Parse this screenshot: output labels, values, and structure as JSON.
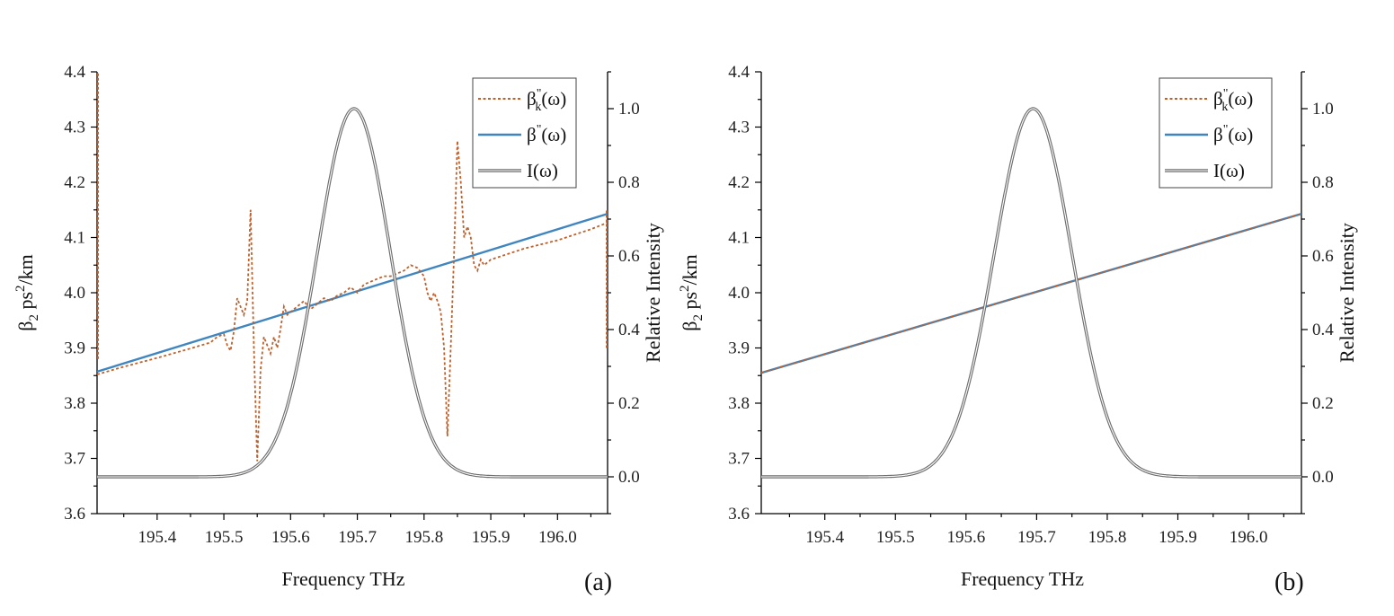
{
  "chart_data": [
    {
      "type": "line",
      "panel_label": "(a)",
      "xlabel": "Frequency THz",
      "ylabel": "β2 ps2/km",
      "ylabel_parts": {
        "base": "β",
        "sub": "2",
        "unit": " ps",
        "sup": "2",
        "unit2": "/km"
      },
      "y2label": "Relative Intensity",
      "xlim": [
        195.31,
        196.075
      ],
      "ylim": [
        3.6,
        4.4
      ],
      "y2lim": [
        -0.1,
        1.1
      ],
      "x_ticks": [
        "195.4",
        "195.5",
        "195.6",
        "195.7",
        "195.8",
        "195.9",
        "196.0"
      ],
      "y_ticks": [
        "3.6",
        "3.7",
        "3.8",
        "3.9",
        "4.0",
        "4.1",
        "4.2",
        "4.3",
        "4.4"
      ],
      "y2_ticks": [
        "0.0",
        "0.2",
        "0.4",
        "0.6",
        "0.8",
        "1.0"
      ],
      "legend": [
        {
          "label": "βk''(ω)",
          "base": "β",
          "sub": "k",
          "sup": "\"",
          "arg": "(ω)",
          "style": "dotted",
          "color": "#c0602a"
        },
        {
          "label": "β''(ω)",
          "base": "β",
          "sub": "",
          "sup": "\"",
          "arg": "(ω)",
          "style": "solid",
          "color": "#3f86c0"
        },
        {
          "label": "I(ω)",
          "base": "I",
          "sub": "",
          "sup": "",
          "arg": "(ω)",
          "style": "double",
          "color": "#555555"
        }
      ],
      "series": [
        {
          "name": "β''(ω)",
          "axis": "left",
          "x": [
            195.31,
            196.075
          ],
          "y": [
            3.857,
            4.143
          ]
        },
        {
          "name": "βk''(ω)",
          "axis": "left",
          "x": [
            195.31,
            195.35,
            195.4,
            195.45,
            195.48,
            195.49,
            195.5,
            195.505,
            195.51,
            195.515,
            195.52,
            195.525,
            195.53,
            195.535,
            195.54,
            195.545,
            195.55,
            195.555,
            195.56,
            195.565,
            195.57,
            195.575,
            195.58,
            195.585,
            195.59,
            195.595,
            195.6,
            195.61,
            195.62,
            195.63,
            195.64,
            195.65,
            195.66,
            195.67,
            195.68,
            195.69,
            195.7,
            195.71,
            195.72,
            195.73,
            195.74,
            195.75,
            195.76,
            195.77,
            195.78,
            195.79,
            195.8,
            195.805,
            195.81,
            195.815,
            195.82,
            195.825,
            195.83,
            195.835,
            195.84,
            195.845,
            195.85,
            195.855,
            195.86,
            195.865,
            195.87,
            195.875,
            195.88,
            195.885,
            195.89,
            195.9,
            195.95,
            196.0,
            196.05,
            196.075
          ],
          "y": [
            3.852,
            3.866,
            3.882,
            3.899,
            3.91,
            3.92,
            3.925,
            3.905,
            3.895,
            3.93,
            3.99,
            3.975,
            3.96,
            3.985,
            4.15,
            3.9,
            3.695,
            3.86,
            3.92,
            3.905,
            3.89,
            3.92,
            3.9,
            3.935,
            3.975,
            3.96,
            3.965,
            3.975,
            3.985,
            3.97,
            3.98,
            3.99,
            3.985,
            3.995,
            4.0,
            4.01,
            4.0,
            4.015,
            4.02,
            4.025,
            4.03,
            4.03,
            4.035,
            4.04,
            4.05,
            4.045,
            4.03,
            4.0,
            3.985,
            4.0,
            3.985,
            3.965,
            3.9,
            3.74,
            3.9,
            4.07,
            4.275,
            4.2,
            4.1,
            4.12,
            4.1,
            4.05,
            4.04,
            4.06,
            4.05,
            4.06,
            4.08,
            4.095,
            4.115,
            4.127
          ]
        },
        {
          "name": "I(ω)",
          "axis": "right",
          "type": "gaussian",
          "center": 195.695,
          "amplitude": 1.0,
          "sigma": 0.055,
          "baseline": 0.0
        }
      ],
      "edge_line": {
        "axis": "left",
        "x": 195.31,
        "y_from": 3.88,
        "y_to": 4.4
      }
    },
    {
      "type": "line",
      "panel_label": "(b)",
      "xlabel": "Frequency THz",
      "ylabel": "β2 ps2/km",
      "ylabel_parts": {
        "base": "β",
        "sub": "2",
        "unit": " ps",
        "sup": "2",
        "unit2": "/km"
      },
      "y2label": "Relative Intensity",
      "xlim": [
        195.31,
        196.075
      ],
      "ylim": [
        3.6,
        4.4
      ],
      "y2lim": [
        -0.1,
        1.1
      ],
      "x_ticks": [
        "195.4",
        "195.5",
        "195.6",
        "195.7",
        "195.8",
        "195.9",
        "196.0"
      ],
      "y_ticks": [
        "3.6",
        "3.7",
        "3.8",
        "3.9",
        "4.0",
        "4.1",
        "4.2",
        "4.3",
        "4.4"
      ],
      "y2_ticks": [
        "0.0",
        "0.2",
        "0.4",
        "0.6",
        "0.8",
        "1.0"
      ],
      "legend": [
        {
          "label": "βk''(ω)",
          "base": "β",
          "sub": "k",
          "sup": "\"",
          "arg": "(ω)",
          "style": "dotted",
          "color": "#c0602a"
        },
        {
          "label": "β''(ω)",
          "base": "β",
          "sub": "",
          "sup": "\"",
          "arg": "(ω)",
          "style": "solid",
          "color": "#3f86c0"
        },
        {
          "label": "I(ω)",
          "base": "I",
          "sub": "",
          "sup": "",
          "arg": "(ω)",
          "style": "double",
          "color": "#555555"
        }
      ],
      "series": [
        {
          "name": "β''(ω)",
          "axis": "left",
          "x": [
            195.31,
            196.075
          ],
          "y": [
            3.855,
            4.143
          ]
        },
        {
          "name": "βk''(ω)",
          "axis": "left",
          "x": [
            195.31,
            196.075
          ],
          "y": [
            3.855,
            4.143
          ]
        },
        {
          "name": "I(ω)",
          "axis": "right",
          "type": "gaussian",
          "center": 195.695,
          "amplitude": 1.0,
          "sigma": 0.055,
          "baseline": 0.0
        }
      ]
    }
  ]
}
